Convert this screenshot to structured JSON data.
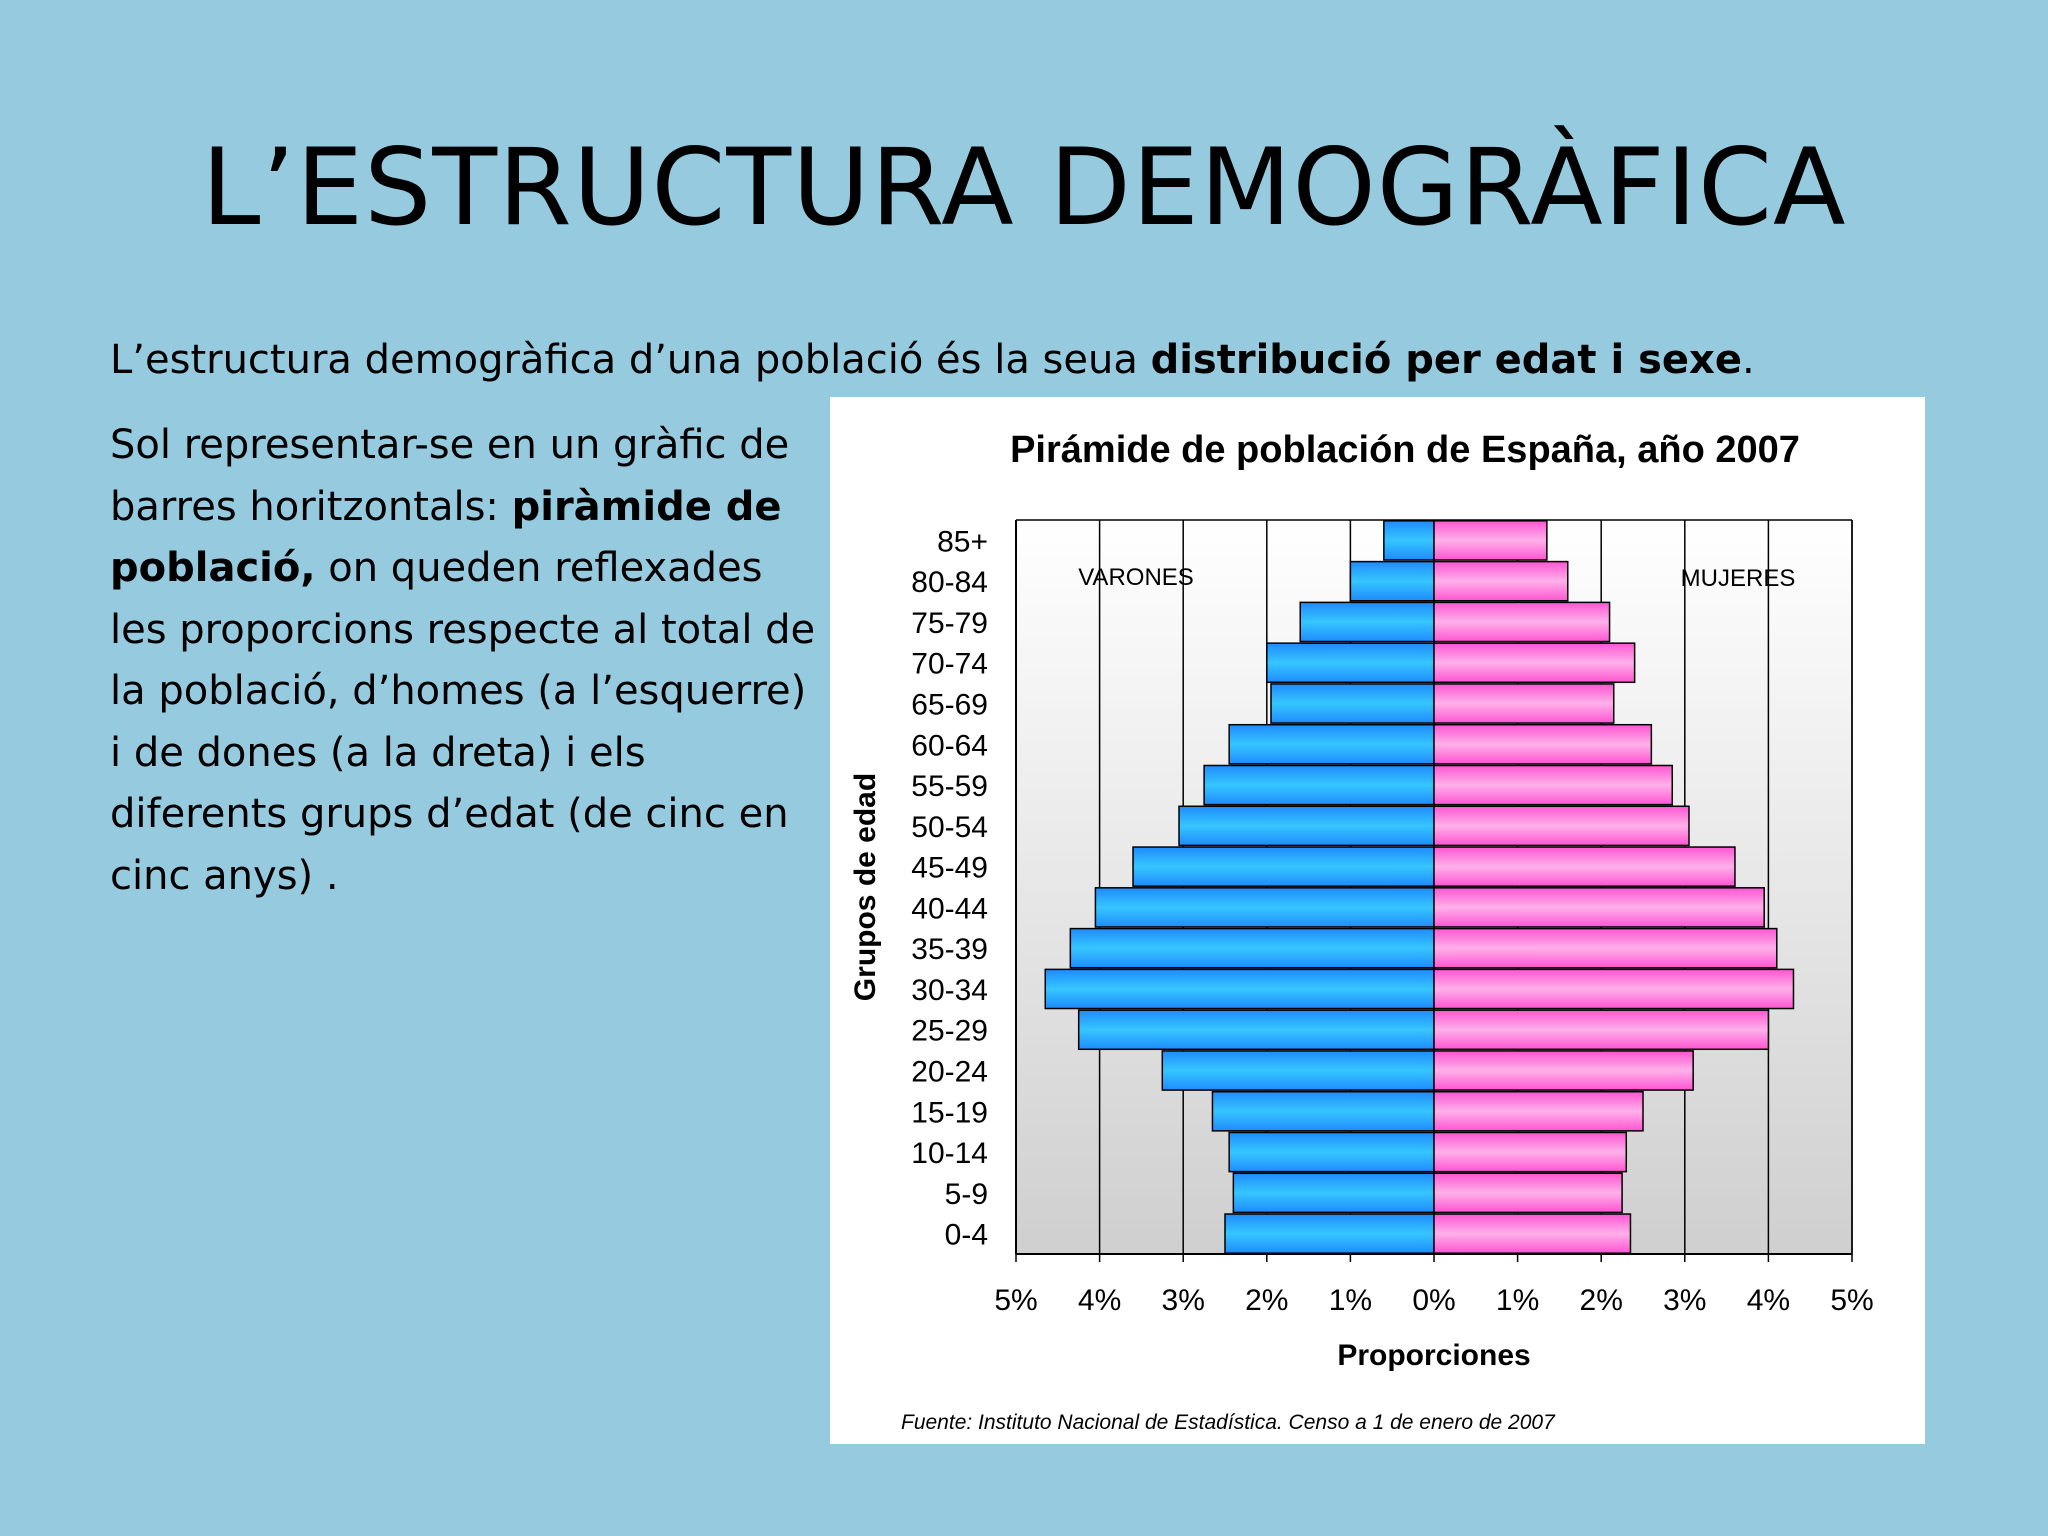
{
  "slide": {
    "title": "L’ESTRUCTURA DEMOGRÀFICA",
    "intro_pre": "L’estructura demogràfica d’una població és la  seua ",
    "intro_bold": "distribució per edat i sexe",
    "intro_post": ".",
    "desc_pre": "Sol representar-se en un gràfic de barres horitzontals: ",
    "desc_bold": "piràmide de població,",
    "desc_post": " on queden reflexades les proporcions respecte al total de la població, d’homes (a l’esquerre) i de dones (a la dreta) i els diferents grups d’edat (de cinc en cinc anys) ."
  },
  "colors": {
    "background": "#96cadf",
    "male_bar": "#2aa4ff",
    "female_bar": "#ff6fd6"
  },
  "chart_data": {
    "type": "bar",
    "orientation": "horizontal-pyramid",
    "title": "Pirámide de población de España, año 2007",
    "ylabel": "Grupos de edad",
    "xlabel": "Proporciones",
    "source": "Fuente: Instituto Nacional de Estadística. Censo a 1 de enero de 2007",
    "categories": [
      "85+",
      "80-84",
      "75-79",
      "70-74",
      "65-69",
      "60-64",
      "55-59",
      "50-54",
      "45-49",
      "40-44",
      "35-39",
      "30-34",
      "25-29",
      "20-24",
      "15-19",
      "10-14",
      "5-9",
      "0-4"
    ],
    "series": [
      {
        "name": "VARONES",
        "side": "left",
        "values": [
          0.6,
          1.0,
          1.6,
          2.0,
          1.95,
          2.45,
          2.75,
          3.05,
          3.6,
          4.05,
          4.35,
          4.65,
          4.25,
          3.25,
          2.65,
          2.45,
          2.4,
          2.5
        ]
      },
      {
        "name": "MUJERES",
        "side": "right",
        "values": [
          1.35,
          1.6,
          2.1,
          2.4,
          2.15,
          2.6,
          2.85,
          3.05,
          3.6,
          3.95,
          4.1,
          4.3,
          4.0,
          3.1,
          2.5,
          2.3,
          2.25,
          2.35
        ]
      }
    ],
    "xticks": [
      "5%",
      "4%",
      "3%",
      "2%",
      "1%",
      "0%",
      "1%",
      "2%",
      "3%",
      "4%",
      "5%"
    ],
    "xlim": [
      -5,
      5
    ],
    "grid": true
  }
}
